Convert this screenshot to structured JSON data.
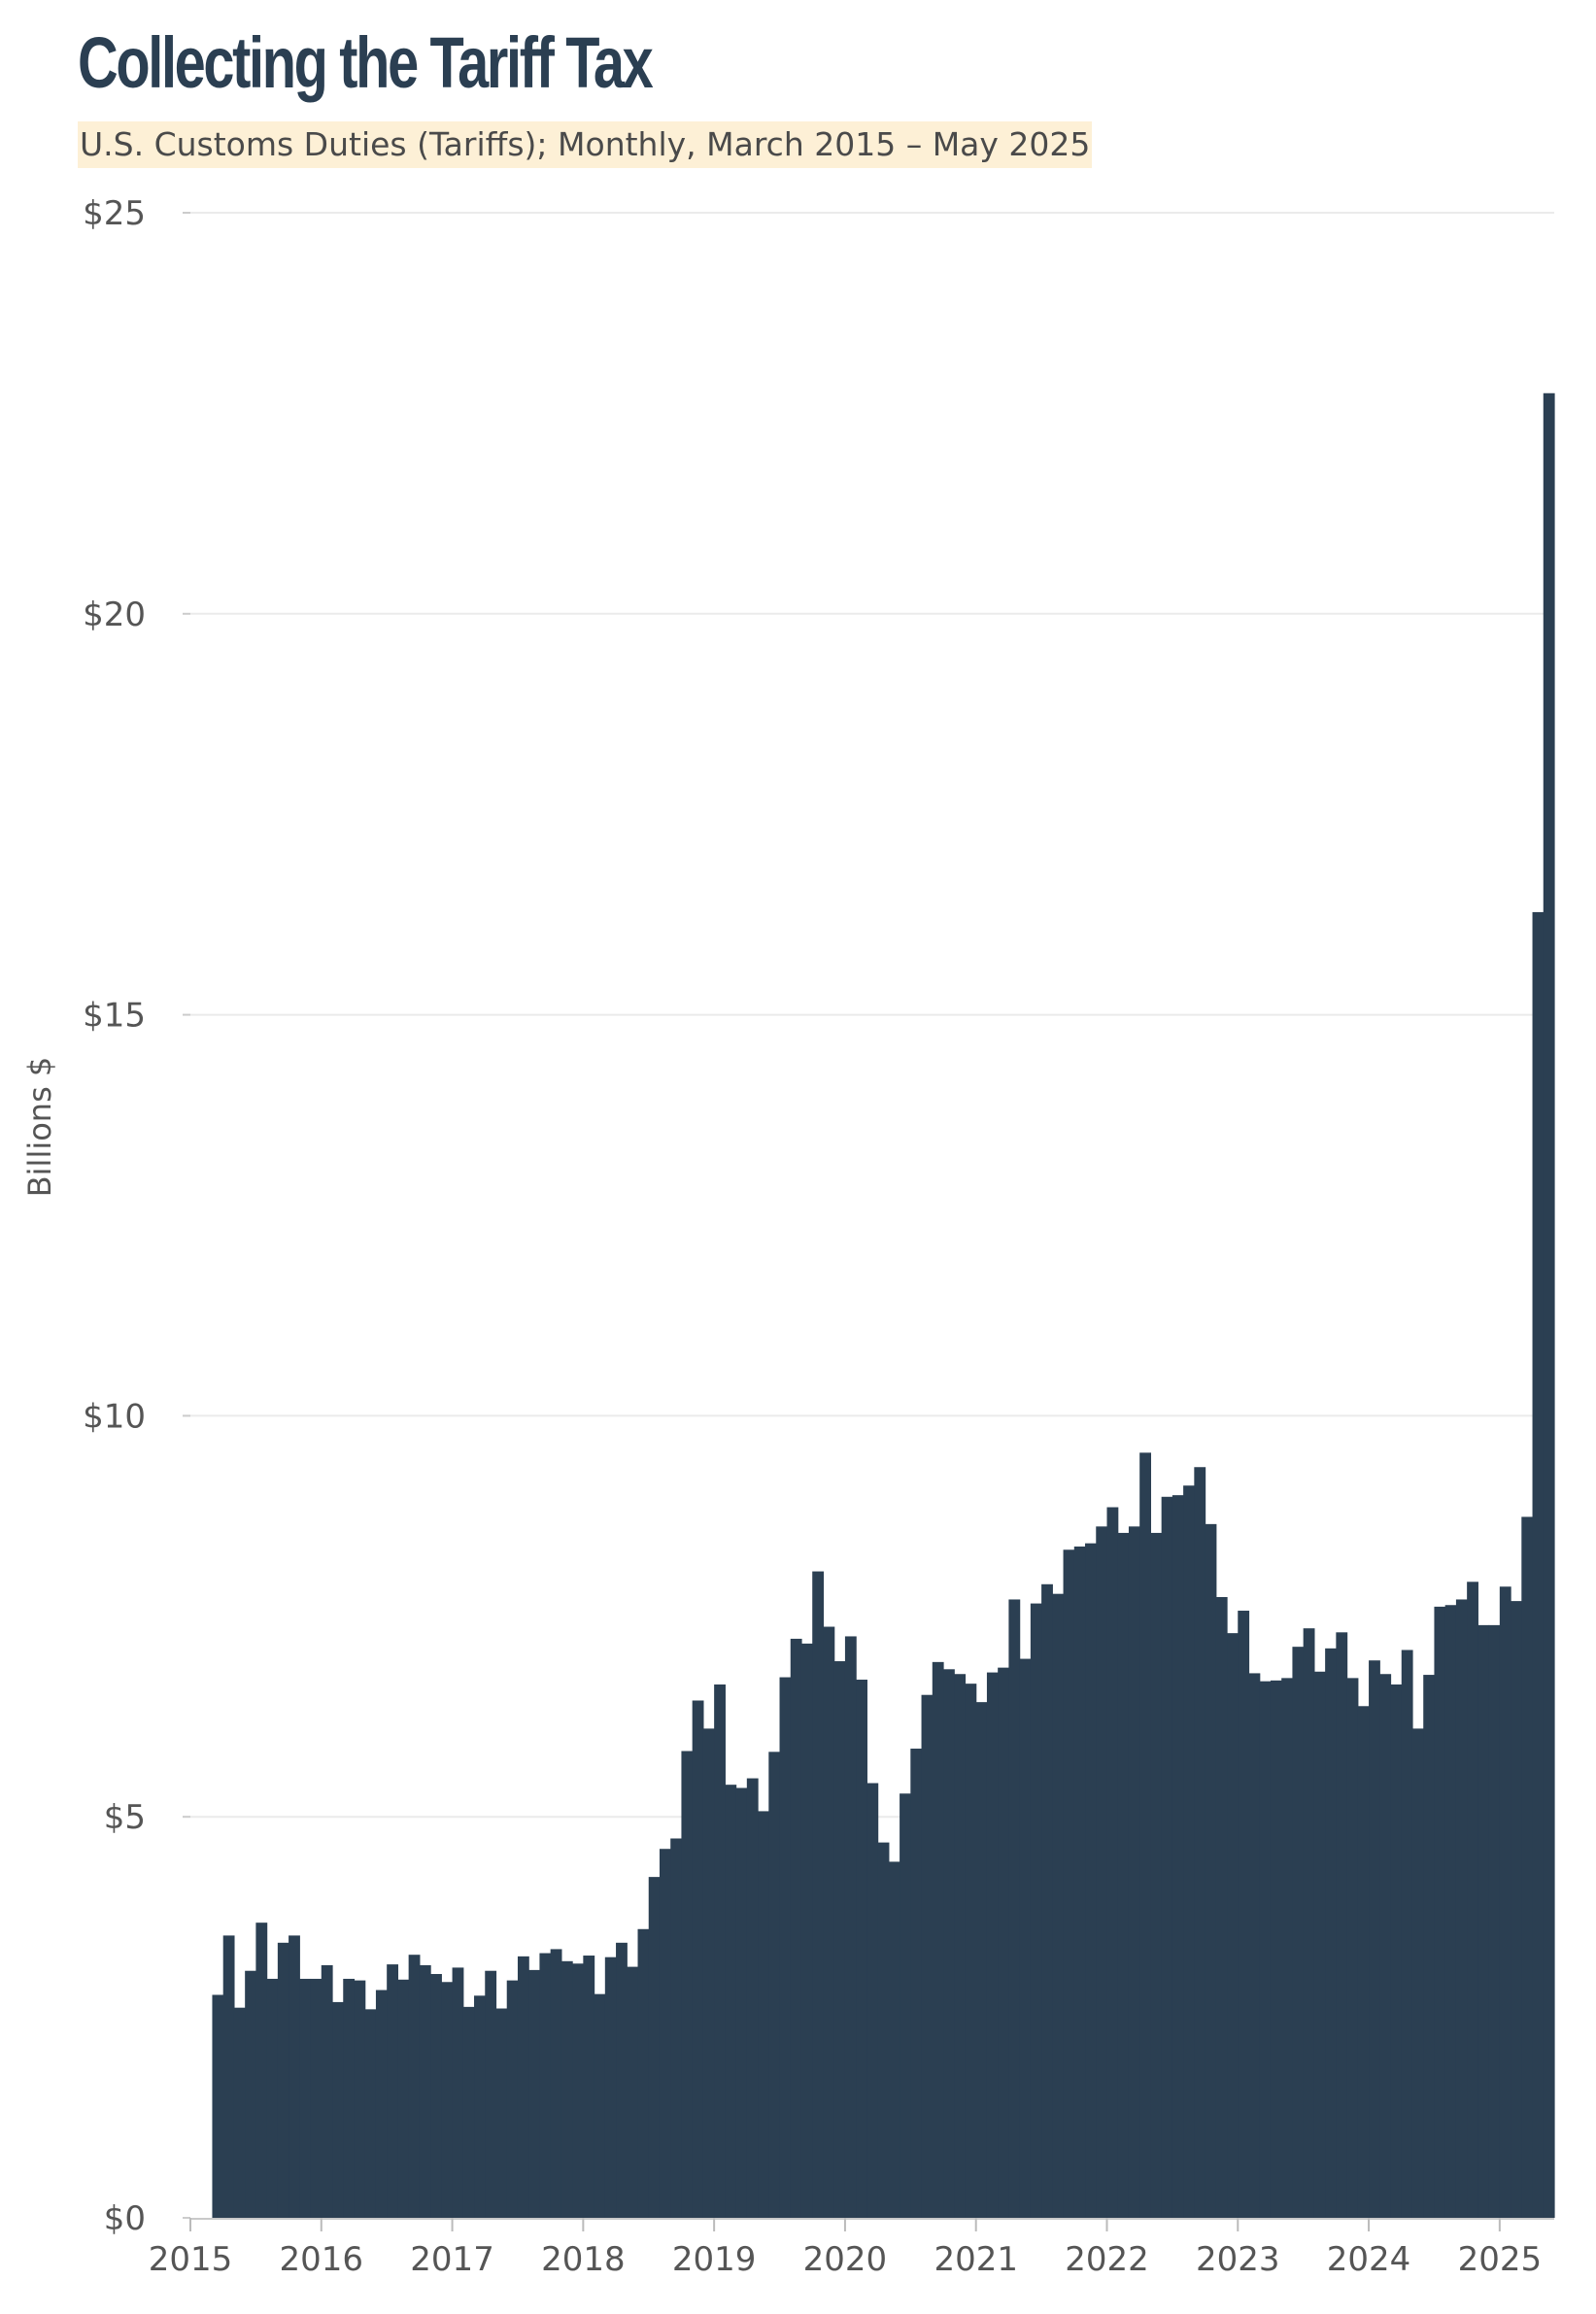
{
  "chart_data": {
    "type": "bar",
    "title": "Collecting the Tariff Tax",
    "subtitle": "U.S. Customs Duties (Tariffs); Monthly, March 2015 – May 2025",
    "xlabel": "",
    "ylabel": "Billions $",
    "ylim": [
      0,
      25
    ],
    "x_range": [
      "2015-01",
      "2025-06"
    ],
    "y_ticks": [
      {
        "value": 0,
        "label": "$0"
      },
      {
        "value": 5,
        "label": "$5"
      },
      {
        "value": 10,
        "label": "$10"
      },
      {
        "value": 15,
        "label": "$15"
      },
      {
        "value": 20,
        "label": "$20"
      },
      {
        "value": 25,
        "label": "$25"
      }
    ],
    "x_ticks": [
      "2015",
      "2016",
      "2017",
      "2018",
      "2019",
      "2020",
      "2021",
      "2022",
      "2023",
      "2024",
      "2025"
    ],
    "grid": "horizontal",
    "start_month": "2015-03",
    "end_month": "2025-05",
    "values": [
      2.78,
      3.52,
      2.62,
      3.08,
      3.68,
      2.98,
      3.43,
      3.52,
      2.98,
      2.98,
      3.15,
      2.69,
      2.98,
      2.96,
      2.6,
      2.84,
      3.16,
      2.97,
      3.28,
      3.15,
      3.04,
      2.94,
      3.12,
      2.63,
      2.77,
      3.08,
      2.61,
      2.96,
      3.26,
      3.09,
      3.3,
      3.35,
      3.2,
      3.17,
      3.27,
      2.79,
      3.25,
      3.43,
      3.13,
      3.6,
      4.25,
      4.6,
      4.73,
      5.82,
      6.45,
      6.1,
      6.65,
      5.4,
      5.36,
      5.48,
      5.07,
      5.81,
      6.74,
      7.22,
      7.16,
      8.06,
      7.37,
      6.94,
      7.25,
      6.71,
      5.42,
      4.68,
      4.44,
      5.29,
      5.85,
      6.52,
      6.93,
      6.84,
      6.78,
      6.66,
      6.43,
      6.8,
      6.86,
      7.71,
      6.97,
      7.66,
      7.9,
      7.78,
      8.33,
      8.37,
      8.41,
      8.62,
      8.86,
      8.54,
      8.62,
      9.54,
      8.54,
      8.99,
      9.01,
      9.13,
      9.36,
      8.65,
      7.74,
      7.29,
      7.57,
      6.79,
      6.69,
      6.7,
      6.73,
      7.12,
      7.35,
      6.81,
      7.1,
      7.3,
      6.73,
      6.38,
      6.95,
      6.78,
      6.65,
      7.08,
      6.1,
      6.77,
      7.62,
      7.64,
      7.71,
      7.93,
      7.39,
      7.39,
      7.87,
      7.69,
      8.74,
      16.28,
      22.75
    ]
  }
}
